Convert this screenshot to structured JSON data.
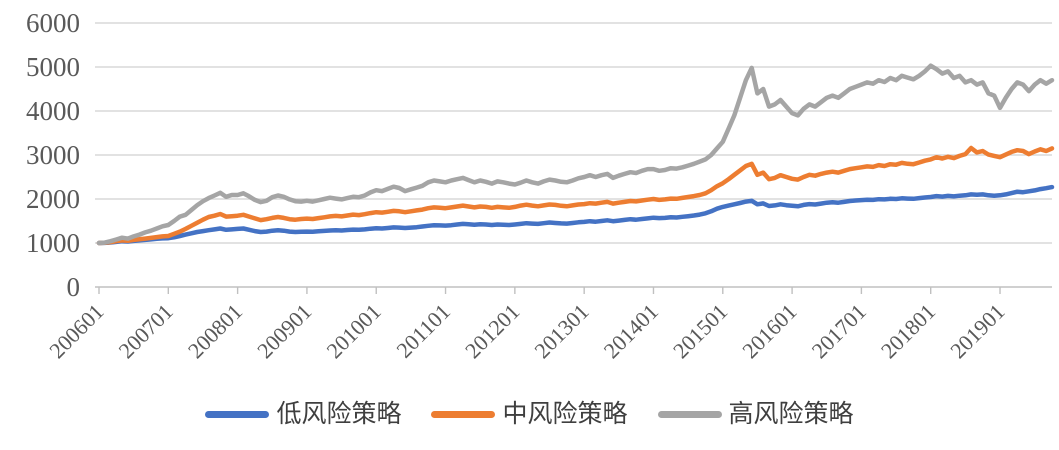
{
  "colors": {
    "axis_text": "#595959",
    "gridline": "#d9d9d9",
    "axis_line": "#c0c0c0",
    "legend_text": "#3f3f3f",
    "background": "#ffffff"
  },
  "chart_data": {
    "type": "line",
    "title": "",
    "xlabel": "",
    "ylabel": "",
    "grid": true,
    "legend_position": "bottom",
    "ylim": [
      0,
      6000
    ],
    "y_tick_step": 1000,
    "y_tick_labels": [
      "0",
      "1000",
      "2000",
      "3000",
      "4000",
      "5000",
      "6000"
    ],
    "x_tick_labels": [
      "200601",
      "200701",
      "200801",
      "200901",
      "201001",
      "201101",
      "201201",
      "201301",
      "201401",
      "201501",
      "201601",
      "201701",
      "201801",
      "201901"
    ],
    "x_frequency": "monthly",
    "x_start": "200601",
    "x_end": "201910",
    "series": [
      {
        "id": "low-risk",
        "name": "低风险策略",
        "color": "#4472c4",
        "values": [
          1000,
          1003,
          1012,
          1025,
          1040,
          1035,
          1048,
          1058,
          1070,
          1082,
          1095,
          1105,
          1110,
          1130,
          1160,
          1190,
          1220,
          1250,
          1270,
          1290,
          1310,
          1330,
          1300,
          1310,
          1320,
          1330,
          1300,
          1270,
          1250,
          1260,
          1280,
          1290,
          1280,
          1260,
          1250,
          1255,
          1260,
          1255,
          1265,
          1275,
          1285,
          1290,
          1285,
          1295,
          1305,
          1300,
          1310,
          1325,
          1335,
          1330,
          1340,
          1355,
          1350,
          1340,
          1350,
          1360,
          1375,
          1390,
          1405,
          1400,
          1395,
          1405,
          1420,
          1435,
          1425,
          1415,
          1425,
          1420,
          1410,
          1420,
          1415,
          1410,
          1420,
          1435,
          1450,
          1440,
          1435,
          1450,
          1465,
          1455,
          1445,
          1440,
          1455,
          1470,
          1480,
          1495,
          1485,
          1500,
          1515,
          1495,
          1510,
          1525,
          1540,
          1530,
          1545,
          1560,
          1575,
          1565,
          1570,
          1585,
          1580,
          1595,
          1610,
          1625,
          1645,
          1675,
          1720,
          1780,
          1820,
          1850,
          1880,
          1910,
          1940,
          1960,
          1880,
          1900,
          1840,
          1855,
          1880,
          1860,
          1845,
          1835,
          1865,
          1885,
          1875,
          1895,
          1915,
          1925,
          1915,
          1935,
          1955,
          1965,
          1975,
          1985,
          1980,
          1995,
          1990,
          2005,
          2000,
          2015,
          2010,
          2005,
          2020,
          2035,
          2045,
          2065,
          2055,
          2070,
          2060,
          2075,
          2085,
          2105,
          2095,
          2105,
          2085,
          2075,
          2085,
          2105,
          2135,
          2165,
          2155,
          2175,
          2195,
          2225,
          2245,
          2270
        ]
      },
      {
        "id": "medium-risk",
        "name": "中风险策略",
        "color": "#ed7d31",
        "values": [
          1000,
          1005,
          1020,
          1040,
          1060,
          1050,
          1070,
          1085,
          1100,
          1115,
          1135,
          1150,
          1160,
          1210,
          1260,
          1320,
          1390,
          1460,
          1530,
          1590,
          1620,
          1660,
          1600,
          1610,
          1620,
          1640,
          1600,
          1560,
          1520,
          1540,
          1570,
          1590,
          1570,
          1540,
          1530,
          1545,
          1555,
          1545,
          1565,
          1585,
          1605,
          1615,
          1605,
          1625,
          1645,
          1635,
          1655,
          1680,
          1700,
          1690,
          1710,
          1730,
          1720,
          1700,
          1720,
          1740,
          1760,
          1790,
          1810,
          1800,
          1790,
          1810,
          1830,
          1850,
          1830,
          1810,
          1830,
          1820,
          1800,
          1820,
          1810,
          1800,
          1820,
          1850,
          1870,
          1850,
          1835,
          1855,
          1875,
          1865,
          1845,
          1835,
          1855,
          1875,
          1885,
          1905,
          1895,
          1915,
          1935,
          1895,
          1915,
          1935,
          1955,
          1945,
          1965,
          1985,
          2000,
          1980,
          1990,
          2010,
          2005,
          2025,
          2045,
          2065,
          2090,
          2130,
          2200,
          2290,
          2360,
          2450,
          2550,
          2650,
          2750,
          2800,
          2550,
          2600,
          2450,
          2480,
          2540,
          2500,
          2460,
          2440,
          2500,
          2550,
          2530,
          2570,
          2600,
          2620,
          2600,
          2640,
          2680,
          2700,
          2720,
          2740,
          2730,
          2770,
          2750,
          2790,
          2780,
          2820,
          2800,
          2790,
          2830,
          2870,
          2900,
          2950,
          2920,
          2960,
          2930,
          2980,
          3020,
          3160,
          3060,
          3090,
          3010,
          2980,
          2950,
          3010,
          3070,
          3110,
          3090,
          3020,
          3080,
          3130,
          3090,
          3150
        ]
      },
      {
        "id": "high-risk",
        "name": "高风险策略",
        "color": "#a5a5a5",
        "values": [
          1000,
          1010,
          1040,
          1080,
          1120,
          1100,
          1150,
          1190,
          1240,
          1280,
          1330,
          1380,
          1410,
          1500,
          1600,
          1640,
          1750,
          1860,
          1950,
          2020,
          2080,
          2140,
          2050,
          2090,
          2090,
          2130,
          2060,
          1980,
          1930,
          1960,
          2040,
          2080,
          2050,
          1990,
          1950,
          1940,
          1960,
          1940,
          1970,
          2000,
          2030,
          2010,
          1990,
          2020,
          2050,
          2040,
          2080,
          2150,
          2200,
          2180,
          2230,
          2280,
          2250,
          2180,
          2220,
          2260,
          2300,
          2380,
          2420,
          2400,
          2380,
          2420,
          2450,
          2480,
          2430,
          2380,
          2420,
          2390,
          2350,
          2400,
          2380,
          2350,
          2330,
          2370,
          2420,
          2380,
          2350,
          2400,
          2440,
          2420,
          2390,
          2380,
          2420,
          2470,
          2500,
          2540,
          2500,
          2540,
          2570,
          2480,
          2530,
          2570,
          2610,
          2590,
          2640,
          2680,
          2680,
          2640,
          2660,
          2700,
          2690,
          2720,
          2760,
          2800,
          2850,
          2900,
          3000,
          3150,
          3300,
          3600,
          3900,
          4300,
          4700,
          4980,
          4400,
          4500,
          4100,
          4150,
          4250,
          4100,
          3950,
          3900,
          4050,
          4150,
          4100,
          4200,
          4300,
          4350,
          4300,
          4400,
          4500,
          4550,
          4600,
          4650,
          4620,
          4700,
          4660,
          4750,
          4700,
          4800,
          4760,
          4720,
          4800,
          4900,
          5030,
          4950,
          4850,
          4900,
          4750,
          4800,
          4650,
          4700,
          4600,
          4650,
          4400,
          4350,
          4070,
          4300,
          4500,
          4650,
          4600,
          4450,
          4600,
          4700,
          4620,
          4700
        ]
      }
    ]
  }
}
